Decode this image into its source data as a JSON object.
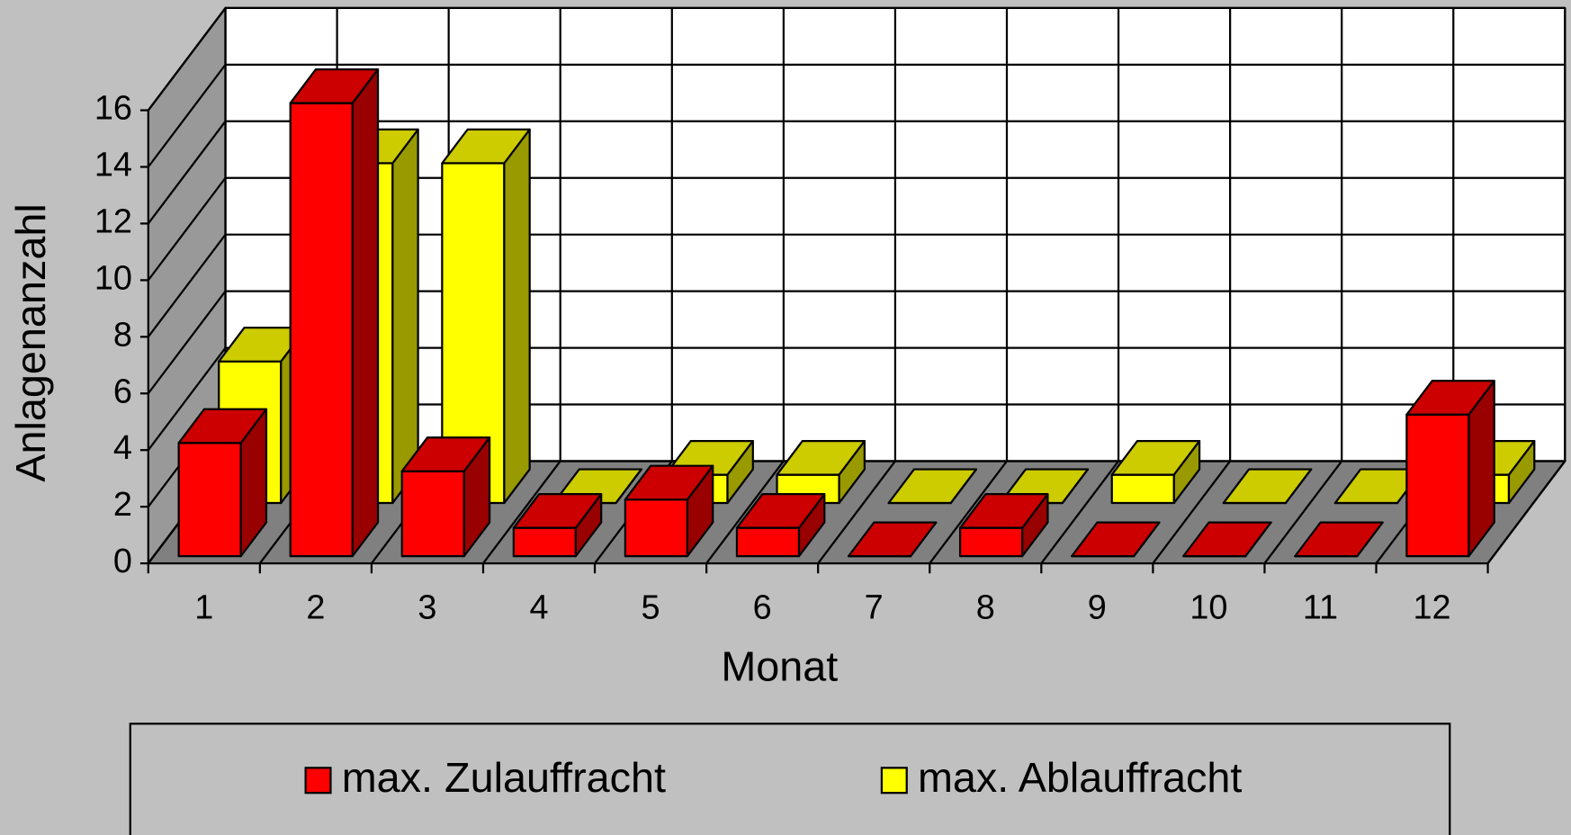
{
  "chart_data": {
    "type": "bar",
    "x_label": "Monat",
    "y_label": "Anlagenanzahl",
    "categories": [
      "1",
      "2",
      "3",
      "4",
      "5",
      "6",
      "7",
      "8",
      "9",
      "10",
      "11",
      "12"
    ],
    "series": [
      {
        "name": "max. Zulauffracht",
        "color": "#ff0000",
        "values": [
          4,
          16,
          3,
          1,
          2,
          1,
          0,
          1,
          0,
          0,
          0,
          5
        ]
      },
      {
        "name": "max. Ablauffracht",
        "color": "#ffff00",
        "values": [
          5,
          12,
          12,
          0,
          1,
          1,
          0,
          0,
          1,
          0,
          0,
          1
        ]
      }
    ],
    "ylim": [
      0,
      16
    ],
    "yticks": [
      0,
      2,
      4,
      6,
      8,
      10,
      12,
      14,
      16
    ],
    "grid": true,
    "legend": "bottom"
  }
}
